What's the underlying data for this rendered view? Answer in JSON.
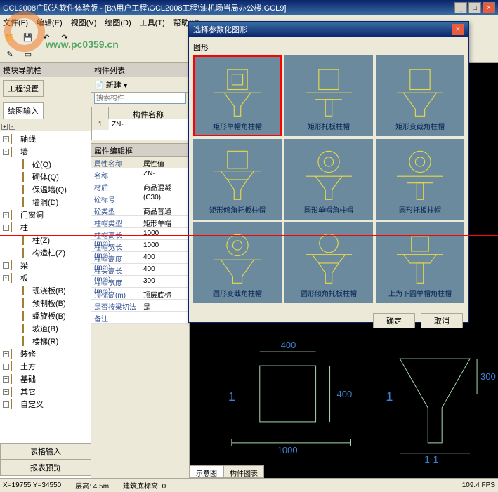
{
  "window": {
    "title": "GCL2008广联达软件体验版 - [B:\\用户工程\\GCL2008工程\\油机场当局办公楼.GCL9]",
    "minimize": "_",
    "maximize": "□",
    "close": "×"
  },
  "menubar": [
    "文件(F)",
    "编辑(E)",
    "视图(V)",
    "绘图(D)",
    "工具(T)",
    "帮助(H)"
  ],
  "left_panel": {
    "header": "模块导航栏",
    "tabs": [
      "工程设置",
      "绘图输入"
    ]
  },
  "tree": [
    {
      "label": "轴线",
      "level": 0,
      "exp": "-",
      "icon": "folder"
    },
    {
      "label": "墙",
      "level": 0,
      "exp": "-",
      "icon": "folder"
    },
    {
      "label": "砼(Q)",
      "level": 1,
      "exp": "",
      "icon": "wall"
    },
    {
      "label": "砌体(Q)",
      "level": 1,
      "exp": "",
      "icon": "wall"
    },
    {
      "label": "保温墙(Q)",
      "level": 1,
      "exp": "",
      "icon": "wall"
    },
    {
      "label": "墙洞(D)",
      "level": 1,
      "exp": "",
      "icon": "wall"
    },
    {
      "label": "门窗洞",
      "level": 0,
      "exp": "-",
      "icon": "folder"
    },
    {
      "label": "柱",
      "level": 0,
      "exp": "-",
      "icon": "folder"
    },
    {
      "label": "柱(Z)",
      "level": 1,
      "exp": "",
      "icon": "col"
    },
    {
      "label": "构造柱(Z)",
      "level": 1,
      "exp": "",
      "icon": "col"
    },
    {
      "label": "梁",
      "level": 0,
      "exp": "+",
      "icon": "folder"
    },
    {
      "label": "板",
      "level": 0,
      "exp": "-",
      "icon": "folder"
    },
    {
      "label": "现浇板(B)",
      "level": 1,
      "exp": "",
      "icon": "slab"
    },
    {
      "label": "预制板(B)",
      "level": 1,
      "exp": "",
      "icon": "slab"
    },
    {
      "label": "螺旋板(B)",
      "level": 1,
      "exp": "",
      "icon": "slab"
    },
    {
      "label": "坡道(B)",
      "level": 1,
      "exp": "",
      "icon": "slab"
    },
    {
      "label": "楼梯(R)",
      "level": 1,
      "exp": "",
      "icon": "slab"
    },
    {
      "label": "装修",
      "level": 0,
      "exp": "+",
      "icon": "folder"
    },
    {
      "label": "土方",
      "level": 0,
      "exp": "+",
      "icon": "folder"
    },
    {
      "label": "基础",
      "level": 0,
      "exp": "+",
      "icon": "folder"
    },
    {
      "label": "其它",
      "level": 0,
      "exp": "+",
      "icon": "folder"
    },
    {
      "label": "自定义",
      "level": 0,
      "exp": "+",
      "icon": "folder"
    }
  ],
  "mid_panel": {
    "header": "构件列表",
    "new_btn": "新建",
    "search_placeholder": "搜索构件...",
    "col_index": "",
    "col_name": "构件名称",
    "row_idx": "1",
    "row_name": "ZN-"
  },
  "props": {
    "header": "属性编辑框",
    "rows": [
      {
        "label": "属性名称",
        "value": "属性值"
      },
      {
        "label": "名称",
        "value": "ZN-"
      },
      {
        "label": "材质",
        "value": "商品混凝"
      },
      {
        "label": "砼标号",
        "value": "(C30)"
      },
      {
        "label": "砼类型",
        "value": "商品普通"
      },
      {
        "label": "柱帽类型",
        "value": "矩形单帽"
      },
      {
        "label": "柱帽高长(mm)",
        "value": "1000"
      },
      {
        "label": "柱帽宽长(mm)",
        "value": "1000"
      },
      {
        "label": "柱帽高度(mm)",
        "value": "400"
      },
      {
        "label": "柱头高长(mm)",
        "value": "400"
      },
      {
        "label": "柱帽宽度(mm)",
        "value": "300"
      },
      {
        "label": "顶标高(m)",
        "value": "顶层底标"
      },
      {
        "label": "是否按梁切法",
        "value": "是"
      },
      {
        "label": "备注",
        "value": ""
      }
    ]
  },
  "bottom_tabs": [
    "表格输入",
    "报表预览"
  ],
  "dialog": {
    "title": "选择参数化图形",
    "label": "图形",
    "shapes": [
      {
        "label": "矩形单帽角柱帽",
        "selected": true
      },
      {
        "label": "矩形托板柱帽",
        "selected": false
      },
      {
        "label": "矩形变截角柱帽",
        "selected": false
      },
      {
        "label": "矩形倾角托板柱帽",
        "selected": false
      },
      {
        "label": "圆形单帽角柱帽",
        "selected": false
      },
      {
        "label": "圆形托板柱帽",
        "selected": false
      },
      {
        "label": "圆形变截角柱帽",
        "selected": false
      },
      {
        "label": "圆形倾角托板柱帽",
        "selected": false
      },
      {
        "label": "上为下圆单帽角柱帽",
        "selected": false
      }
    ],
    "ok": "确定",
    "cancel": "取消"
  },
  "schematic": {
    "dim_top": "400",
    "dim_side": "400",
    "dim_bottom": "1000",
    "dim_right": "300",
    "label_1": "1",
    "label_11": "1-1"
  },
  "canvas_tabs": [
    "示意图",
    "构件图表"
  ],
  "statusbar": {
    "coords": "X=19755 Y=34550",
    "floor": "层高: 4.5m",
    "elev": "建筑底标高: 0",
    "right": "109.4 FPS"
  },
  "watermark": "www.pc0359.cn",
  "colors": {
    "shape_stroke": "#e8d848",
    "schematic_stroke": "#a8d8b0",
    "schematic_text": "#4080d0"
  }
}
